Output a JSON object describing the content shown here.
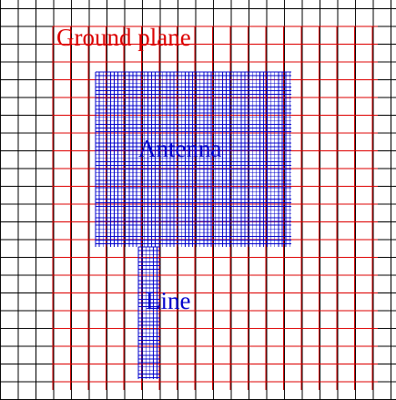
{
  "labels": {
    "ground_plane": "Ground plane",
    "antenna": "Antenna",
    "line": "Line"
  },
  "colors": {
    "background": "#ffffff",
    "coarse_grid": "#000000",
    "ground_plane": "#dd0000",
    "antenna": "#0000cc"
  }
}
